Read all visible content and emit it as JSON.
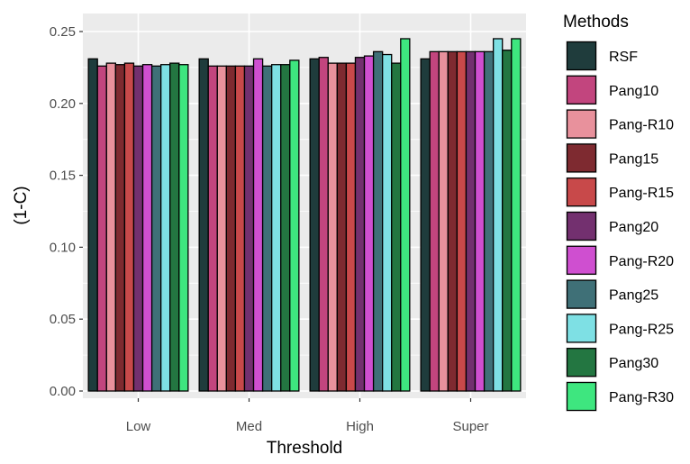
{
  "chart_data": {
    "type": "bar",
    "title": "",
    "xlabel": "Threshold",
    "ylabel": "(1-C)",
    "categories": [
      "Low",
      "Med",
      "High",
      "Super"
    ],
    "ylim": [
      0,
      0.25
    ],
    "yticks": [
      "0.00",
      "0.05",
      "0.10",
      "0.15",
      "0.20",
      "0.25"
    ],
    "grid": true,
    "legend_title": "Methods",
    "legend_position": "right",
    "series": [
      {
        "name": "RSF",
        "color": "#1F3C3C",
        "values": [
          0.231,
          0.231,
          0.231,
          0.231
        ]
      },
      {
        "name": "Pang10",
        "color": "#C2457E",
        "values": [
          0.226,
          0.226,
          0.232,
          0.236
        ]
      },
      {
        "name": "Pang-R10",
        "color": "#E8919C",
        "values": [
          0.228,
          0.226,
          0.228,
          0.236
        ]
      },
      {
        "name": "Pang15",
        "color": "#7E2A30",
        "values": [
          0.227,
          0.226,
          0.228,
          0.236
        ]
      },
      {
        "name": "Pang-R15",
        "color": "#C8494A",
        "values": [
          0.228,
          0.226,
          0.228,
          0.236
        ]
      },
      {
        "name": "Pang20",
        "color": "#73306F",
        "values": [
          0.226,
          0.226,
          0.232,
          0.236
        ]
      },
      {
        "name": "Pang-R20",
        "color": "#CF4FD0",
        "values": [
          0.227,
          0.231,
          0.233,
          0.236
        ]
      },
      {
        "name": "Pang25",
        "color": "#3F7077",
        "values": [
          0.226,
          0.226,
          0.236,
          0.236
        ]
      },
      {
        "name": "Pang-R25",
        "color": "#7EE0E4",
        "values": [
          0.227,
          0.227,
          0.234,
          0.245
        ]
      },
      {
        "name": "Pang30",
        "color": "#237641",
        "values": [
          0.228,
          0.227,
          0.228,
          0.237
        ]
      },
      {
        "name": "Pang-R30",
        "color": "#3EE67F",
        "values": [
          0.227,
          0.23,
          0.245,
          0.245
        ]
      }
    ]
  }
}
